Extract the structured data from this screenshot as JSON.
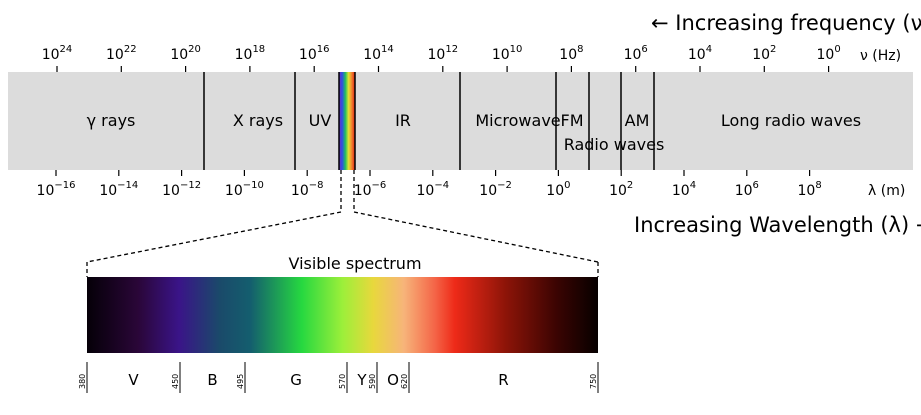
{
  "frequency_arrow": "← Increasing frequency (ν)",
  "wavelength_arrow": "Increasing Wavelength (λ) →",
  "frequency_unit": "ν (Hz)",
  "wavelength_unit": "λ (m)",
  "frequency_ticks": [
    {
      "base": "10",
      "exp": "24"
    },
    {
      "base": "10",
      "exp": "22"
    },
    {
      "base": "10",
      "exp": "20"
    },
    {
      "base": "10",
      "exp": "18"
    },
    {
      "base": "10",
      "exp": "16"
    },
    {
      "base": "10",
      "exp": "14"
    },
    {
      "base": "10",
      "exp": "12"
    },
    {
      "base": "10",
      "exp": "10"
    },
    {
      "base": "10",
      "exp": "8"
    },
    {
      "base": "10",
      "exp": "6"
    },
    {
      "base": "10",
      "exp": "4"
    },
    {
      "base": "10",
      "exp": "2"
    },
    {
      "base": "10",
      "exp": "0"
    }
  ],
  "wavelength_ticks": [
    {
      "base": "10",
      "exp": "−16"
    },
    {
      "base": "10",
      "exp": "−14"
    },
    {
      "base": "10",
      "exp": "−12"
    },
    {
      "base": "10",
      "exp": "−10"
    },
    {
      "base": "10",
      "exp": "−8"
    },
    {
      "base": "10",
      "exp": "−6"
    },
    {
      "base": "10",
      "exp": "−4"
    },
    {
      "base": "10",
      "exp": "−2"
    },
    {
      "base": "10",
      "exp": "0"
    },
    {
      "base": "10",
      "exp": "2"
    },
    {
      "base": "10",
      "exp": "4"
    },
    {
      "base": "10",
      "exp": "6"
    },
    {
      "base": "10",
      "exp": "8"
    }
  ],
  "bands": [
    {
      "label": "γ rays"
    },
    {
      "label": "X rays"
    },
    {
      "label": "UV"
    },
    {
      "label": "IR"
    },
    {
      "label": "Microwave"
    },
    {
      "label": "FM"
    },
    {
      "label": "AM"
    },
    {
      "label": "Long radio waves"
    }
  ],
  "radio_label": "Radio waves",
  "visible_title": "Visible spectrum",
  "visible_nm": [
    "380",
    "450",
    "495",
    "570",
    "590",
    "620",
    "750"
  ],
  "visible_colors": [
    "V",
    "B",
    "G",
    "Y",
    "O",
    "R"
  ],
  "band_background": "#dcdcdc"
}
